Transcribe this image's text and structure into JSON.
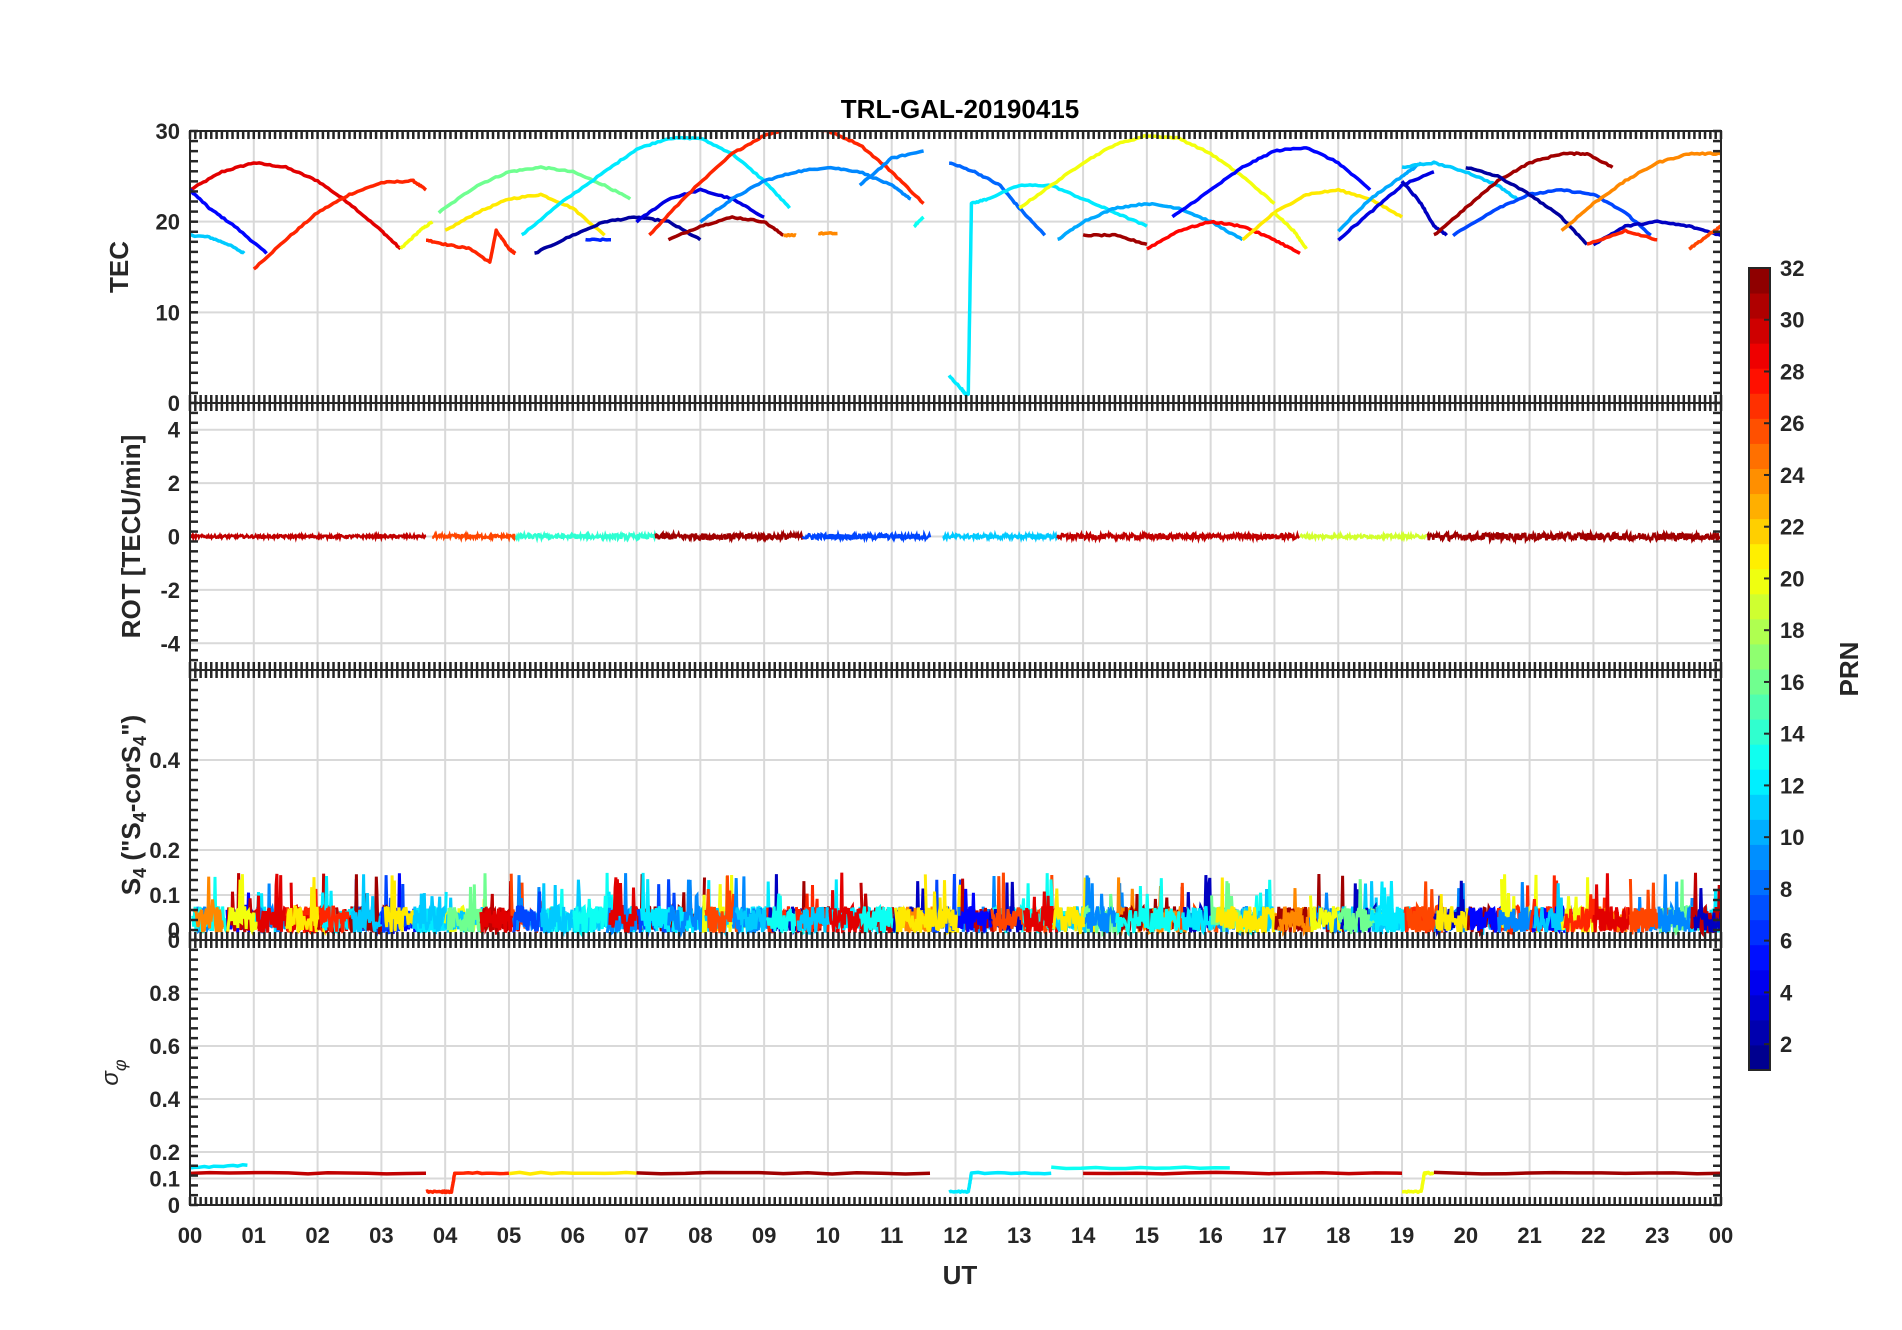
{
  "chart_data": {
    "type": "line",
    "title": "TRL-GAL-20190415",
    "xlabel": "UT",
    "x_tick_labels": [
      "00",
      "01",
      "02",
      "03",
      "04",
      "05",
      "06",
      "07",
      "08",
      "09",
      "10",
      "11",
      "12",
      "13",
      "14",
      "15",
      "16",
      "17",
      "18",
      "19",
      "20",
      "21",
      "22",
      "23",
      "00"
    ],
    "xlim": [
      0,
      24
    ],
    "grid": true,
    "panels": [
      {
        "id": "tec",
        "ylabel": "TEC",
        "ylim": [
          0,
          30
        ],
        "yticks": [
          0,
          10,
          20,
          30
        ],
        "ytick_labels": [
          "0",
          "10",
          "20",
          "30"
        ],
        "series": [
          {
            "prn": 29,
            "x": [
              0.0,
              0.5,
              1.0,
              1.5,
              2.0,
              2.5,
              3.0,
              3.3
            ],
            "y": [
              23.5,
              25.5,
              26.5,
              26.0,
              24.5,
              22.0,
              19.0,
              17.0
            ]
          },
          {
            "prn": 5,
            "x": [
              0.0,
              0.3,
              0.7,
              1.2
            ],
            "y": [
              23.5,
              21.5,
              19.5,
              16.5
            ]
          },
          {
            "prn": 11,
            "x": [
              0.0,
              0.3,
              0.6,
              0.85
            ],
            "y": [
              18.5,
              18.3,
              17.5,
              16.5
            ]
          },
          {
            "prn": 27,
            "x": [
              1.0,
              1.5,
              2.0,
              2.5,
              3.0,
              3.5,
              3.7
            ],
            "y": [
              14.8,
              18.0,
              21.0,
              23.0,
              24.3,
              24.5,
              23.5
            ]
          },
          {
            "prn": 20,
            "x": [
              3.3,
              3.6,
              3.8
            ],
            "y": [
              17.0,
              19.0,
              20.0
            ]
          },
          {
            "prn": 16,
            "x": [
              3.9,
              4.5,
              5.0,
              5.5,
              6.0,
              6.5,
              6.9
            ],
            "y": [
              21.0,
              24.0,
              25.5,
              26.0,
              25.5,
              24.0,
              22.5
            ]
          },
          {
            "prn": 21,
            "x": [
              4.0,
              4.5,
              5.0,
              5.5,
              6.0,
              6.5
            ],
            "y": [
              19.0,
              21.0,
              22.5,
              23.0,
              21.5,
              18.5
            ]
          },
          {
            "prn": 27,
            "x": [
              3.7,
              4.0,
              4.4,
              4.7,
              4.8,
              5.0,
              5.1
            ],
            "y": [
              18.0,
              17.5,
              17.0,
              15.5,
              19.0,
              17.0,
              16.5
            ]
          },
          {
            "prn": 12,
            "x": [
              5.2,
              5.8,
              6.5,
              7.0,
              7.5,
              8.0,
              8.5,
              9.0,
              9.4
            ],
            "y": [
              18.5,
              22.0,
              25.5,
              28.0,
              29.2,
              29.2,
              27.5,
              24.5,
              21.5
            ]
          },
          {
            "prn": 2,
            "x": [
              5.4,
              6.0,
              6.5,
              7.0,
              7.5,
              8.0
            ],
            "y": [
              16.5,
              18.5,
              20.0,
              20.5,
              20.0,
              18.0
            ]
          },
          {
            "prn": 6,
            "x": [
              6.2,
              6.6
            ],
            "y": [
              18.0,
              18.0
            ]
          },
          {
            "prn": 4,
            "x": [
              7.0,
              7.5,
              8.0,
              8.5,
              9.0
            ],
            "y": [
              20.0,
              22.5,
              23.5,
              22.5,
              20.5
            ]
          },
          {
            "prn": 27,
            "x": [
              7.2,
              7.8,
              8.5,
              9.0,
              9.5,
              10.0,
              10.5,
              11.0,
              11.5
            ],
            "y": [
              18.5,
              23.0,
              27.5,
              29.5,
              30.5,
              30.0,
              28.5,
              25.5,
              22.0
            ]
          },
          {
            "prn": 31,
            "x": [
              7.5,
              8.0,
              8.5,
              9.0,
              9.3
            ],
            "y": [
              18.0,
              19.5,
              20.5,
              20.0,
              18.5
            ]
          },
          {
            "prn": 24,
            "x": [
              9.3,
              9.5
            ],
            "y": [
              18.5,
              18.5
            ]
          },
          {
            "prn": 9,
            "x": [
              8.0,
              8.5,
              9.0,
              9.5,
              10.0,
              10.5,
              11.0,
              11.3
            ],
            "y": [
              20.0,
              22.5,
              24.5,
              25.5,
              26.0,
              25.5,
              24.0,
              22.5
            ]
          },
          {
            "prn": 24,
            "x": [
              9.85,
              10.15
            ],
            "y": [
              18.7,
              18.7
            ]
          },
          {
            "prn": 9,
            "x": [
              10.5,
              11.0,
              11.5
            ],
            "y": [
              24.0,
              27.0,
              27.8
            ]
          },
          {
            "prn": 13,
            "x": [
              11.35,
              11.5
            ],
            "y": [
              19.5,
              20.5
            ]
          },
          {
            "prn": 8,
            "x": [
              11.9,
              12.3,
              12.7,
              13.0,
              13.4
            ],
            "y": [
              26.5,
              25.5,
              24.0,
              21.5,
              18.5
            ]
          },
          {
            "prn": 12,
            "x": [
              11.9,
              12.1,
              12.15,
              12.2,
              12.25,
              12.5,
              13.0,
              13.5,
              14.0,
              14.5,
              15.0
            ],
            "y": [
              3.0,
              1.5,
              1.0,
              1.0,
              22.0,
              22.5,
              24.0,
              24.0,
              22.5,
              21.0,
              19.5
            ]
          },
          {
            "prn": 20,
            "x": [
              13.0,
              13.5,
              14.0,
              14.5,
              15.0,
              15.5,
              16.0,
              16.5,
              17.0
            ],
            "y": [
              21.5,
              24.0,
              26.5,
              28.5,
              29.5,
              29.2,
              27.5,
              25.0,
              22.0
            ]
          },
          {
            "prn": 10,
            "x": [
              13.6,
              14.0,
              14.5,
              15.0,
              15.5,
              16.0,
              16.5
            ],
            "y": [
              18.0,
              20.0,
              21.5,
              22.0,
              21.5,
              20.0,
              18.0
            ]
          },
          {
            "prn": 31,
            "x": [
              14.0,
              14.5,
              15.0
            ],
            "y": [
              18.5,
              18.5,
              17.5
            ]
          },
          {
            "prn": 28,
            "x": [
              15.0,
              15.5,
              16.0,
              16.5,
              17.0,
              17.4
            ],
            "y": [
              17.0,
              19.0,
              20.0,
              19.5,
              18.0,
              16.5
            ]
          },
          {
            "prn": 5,
            "x": [
              15.4,
              16.0,
              16.5,
              17.0,
              17.5,
              18.0,
              18.5
            ],
            "y": [
              20.5,
              23.5,
              26.0,
              27.8,
              28.2,
              26.5,
              23.5
            ]
          },
          {
            "prn": 21,
            "x": [
              16.5,
              17.0,
              17.5,
              18.0,
              18.5,
              19.0
            ],
            "y": [
              18.0,
              21.0,
              23.0,
              23.5,
              22.5,
              20.5
            ]
          },
          {
            "prn": 20,
            "x": [
              17.0,
              17.3,
              17.5
            ],
            "y": [
              21.0,
              19.0,
              17.0
            ]
          },
          {
            "prn": 10,
            "x": [
              18.0,
              18.5,
              19.0,
              19.3
            ],
            "y": [
              19.0,
              22.5,
              25.0,
              26.5
            ]
          },
          {
            "prn": 4,
            "x": [
              18.0,
              18.5,
              19.0,
              19.5
            ],
            "y": [
              18.0,
              21.0,
              24.0,
              25.5
            ]
          },
          {
            "prn": 11,
            "x": [
              19.0,
              19.5,
              20.0,
              20.5,
              20.8
            ],
            "y": [
              26.0,
              26.5,
              25.5,
              24.0,
              22.5
            ]
          },
          {
            "prn": 3,
            "x": [
              19.0,
              19.3,
              19.5,
              19.7
            ],
            "y": [
              24.5,
              22.0,
              19.5,
              18.5
            ]
          },
          {
            "prn": 31,
            "x": [
              19.5,
              20.0,
              20.5,
              21.0,
              21.5,
              21.9,
              22.3
            ],
            "y": [
              18.5,
              21.5,
              24.5,
              26.5,
              27.5,
              27.5,
              26.0
            ]
          },
          {
            "prn": 7,
            "x": [
              19.8,
              20.5,
              21.0,
              21.5,
              22.0,
              22.5,
              22.9
            ],
            "y": [
              18.5,
              21.5,
              23.0,
              23.5,
              23.0,
              21.0,
              18.5
            ]
          },
          {
            "prn": 2,
            "x": [
              20.0,
              20.5,
              21.0,
              21.5,
              21.9
            ],
            "y": [
              26.0,
              25.0,
              23.0,
              20.5,
              17.5
            ]
          },
          {
            "prn": 24,
            "x": [
              21.5,
              22.0,
              22.5,
              23.0,
              23.5,
              24.0
            ],
            "y": [
              19.0,
              22.0,
              24.5,
              26.5,
              27.5,
              27.5
            ]
          },
          {
            "prn": 3,
            "x": [
              22.0,
              22.5,
              23.0,
              23.5,
              24.0
            ],
            "y": [
              17.5,
              19.5,
              20.0,
              19.5,
              18.5
            ]
          },
          {
            "prn": 27,
            "x": [
              21.9,
              22.5,
              23.0
            ],
            "y": [
              17.5,
              19.0,
              18.0
            ]
          },
          {
            "prn": 26,
            "x": [
              23.5,
              23.8,
              24.0
            ],
            "y": [
              17.0,
              18.5,
              19.5
            ]
          }
        ]
      },
      {
        "id": "rot",
        "ylabel": "ROT [TECU/min]",
        "ylim": [
          -5,
          5
        ],
        "yticks": [
          -4,
          -2,
          0,
          2,
          4
        ],
        "ytick_labels": [
          "-4",
          "-2",
          "0",
          "2",
          "4"
        ],
        "segments": [
          {
            "prn": 30,
            "x0": 0.0,
            "x1": 3.7,
            "spread": 0.05
          },
          {
            "prn": 26,
            "x0": 3.8,
            "x1": 5.1,
            "spread": 0.07
          },
          {
            "prn": 14,
            "x0": 5.1,
            "x1": 7.3,
            "spread": 0.09
          },
          {
            "prn": 31,
            "x0": 7.3,
            "x1": 9.6,
            "spread": 0.12
          },
          {
            "prn": 7,
            "x0": 9.6,
            "x1": 11.6,
            "spread": 0.1
          },
          {
            "prn": 11,
            "x0": 11.8,
            "x1": 13.6,
            "spread": 0.08
          },
          {
            "prn": 30,
            "x0": 13.6,
            "x1": 17.4,
            "spread": 0.1
          },
          {
            "prn": 19,
            "x0": 17.4,
            "x1": 19.4,
            "spread": 0.06
          },
          {
            "prn": 31,
            "x0": 19.4,
            "x1": 24.0,
            "spread": 0.14
          }
        ]
      },
      {
        "id": "s4",
        "ylabel": "S4 (\"S4-corS4\")",
        "ylim": [
          0,
          0.6
        ],
        "yticks": [
          0,
          0.1,
          0.2,
          0.4
        ],
        "ytick_labels": [
          "0",
          "0.1",
          "0.2",
          "0.4"
        ],
        "extra_tick_label": "0",
        "typical_level": 0.05,
        "peak_level": 0.15
      },
      {
        "id": "sigma_phi",
        "ylabel": "σφ",
        "ylim": [
          0,
          1
        ],
        "yticks": [
          0,
          0.1,
          0.2,
          0.4,
          0.6,
          0.8
        ],
        "ytick_labels": [
          "0",
          "0.1",
          "0.2",
          "0.4",
          "0.6",
          "0.8"
        ],
        "series": [
          {
            "prn": 30,
            "x": [
              0.0,
              3.7
            ],
            "y": [
              0.12,
              0.12
            ]
          },
          {
            "prn": 12,
            "x": [
              0.0,
              0.9
            ],
            "y": [
              0.14,
              0.15
            ]
          },
          {
            "prn": 27,
            "x": [
              3.7,
              3.95,
              4.0,
              4.1,
              4.15,
              5.0
            ],
            "y": [
              0.05,
              0.05,
              0.05,
              0.05,
              0.12,
              0.12
            ]
          },
          {
            "prn": 21,
            "x": [
              5.0,
              7.0
            ],
            "y": [
              0.12,
              0.12
            ]
          },
          {
            "prn": 31,
            "x": [
              7.0,
              11.6
            ],
            "y": [
              0.12,
              0.12
            ]
          },
          {
            "prn": 12,
            "x": [
              11.9,
              12.2,
              12.25,
              13.5
            ],
            "y": [
              0.05,
              0.05,
              0.12,
              0.12
            ]
          },
          {
            "prn": 13,
            "x": [
              13.5,
              16.3
            ],
            "y": [
              0.14,
              0.14
            ]
          },
          {
            "prn": 30,
            "x": [
              14.0,
              19.0
            ],
            "y": [
              0.12,
              0.12
            ]
          },
          {
            "prn": 20,
            "x": [
              19.0,
              19.3,
              19.35,
              19.5
            ],
            "y": [
              0.05,
              0.05,
              0.12,
              0.12
            ]
          },
          {
            "prn": 31,
            "x": [
              19.5,
              24.0
            ],
            "y": [
              0.12,
              0.12
            ]
          }
        ]
      }
    ],
    "colorbar": {
      "label": "PRN",
      "range": [
        1,
        32
      ],
      "tick_labels": [
        "2",
        "4",
        "6",
        "8",
        "10",
        "12",
        "14",
        "16",
        "18",
        "20",
        "22",
        "24",
        "26",
        "28",
        "30",
        "32"
      ],
      "colormap": "jet"
    }
  }
}
